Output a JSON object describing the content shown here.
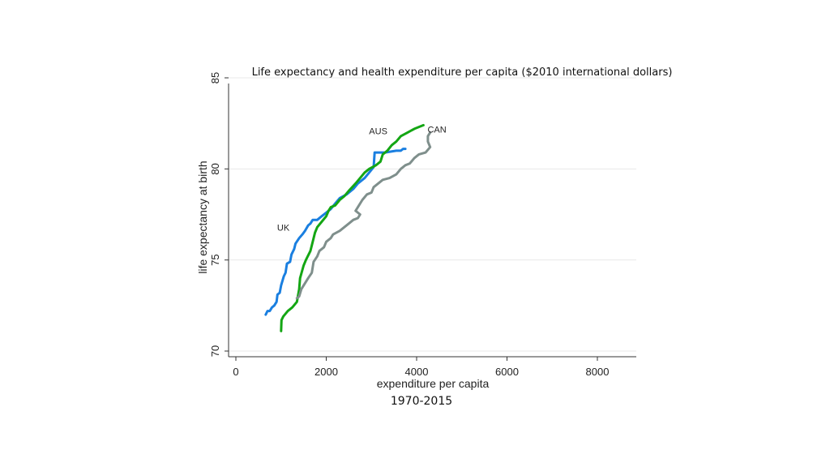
{
  "chart_data": {
    "type": "line",
    "title": "Life expectancy and health expenditure per capita ($2010 international dollars)",
    "xlabel": "expenditure per capita",
    "ylabel": "life expectancy at birth",
    "caption": "1970-2015",
    "xlim": [
      0,
      8900
    ],
    "ylim": [
      70,
      85
    ],
    "x_ticks": [
      0,
      2000,
      4000,
      6000,
      8000
    ],
    "y_ticks": [
      70,
      75,
      80,
      85
    ],
    "grid": true,
    "legend": "none",
    "series": [
      {
        "name": "UK",
        "color": "#1a7fe0",
        "points": [
          [
            660,
            72.0
          ],
          [
            700,
            72.2
          ],
          [
            750,
            72.2
          ],
          [
            800,
            72.4
          ],
          [
            850,
            72.5
          ],
          [
            900,
            72.7
          ],
          [
            920,
            73.1
          ],
          [
            970,
            73.2
          ],
          [
            1000,
            73.6
          ],
          [
            1060,
            74.1
          ],
          [
            1100,
            74.3
          ],
          [
            1130,
            74.8
          ],
          [
            1200,
            74.9
          ],
          [
            1230,
            75.3
          ],
          [
            1290,
            75.6
          ],
          [
            1320,
            75.9
          ],
          [
            1400,
            76.2
          ],
          [
            1470,
            76.4
          ],
          [
            1530,
            76.6
          ],
          [
            1600,
            76.9
          ],
          [
            1650,
            77.0
          ],
          [
            1700,
            77.2
          ],
          [
            1800,
            77.2
          ],
          [
            1900,
            77.4
          ],
          [
            2000,
            77.6
          ],
          [
            2100,
            77.8
          ],
          [
            2200,
            78.1
          ],
          [
            2300,
            78.4
          ],
          [
            2450,
            78.6
          ],
          [
            2600,
            78.9
          ],
          [
            2700,
            79.2
          ],
          [
            2850,
            79.5
          ],
          [
            2950,
            79.8
          ],
          [
            3050,
            80.1
          ],
          [
            3070,
            80.9
          ],
          [
            3300,
            80.9
          ],
          [
            3550,
            81.0
          ],
          [
            3650,
            81.0
          ],
          [
            3700,
            81.1
          ],
          [
            3750,
            81.1
          ]
        ]
      },
      {
        "name": "AUS",
        "color": "#14a614",
        "points": [
          [
            1000,
            71.1
          ],
          [
            1010,
            71.7
          ],
          [
            1050,
            71.9
          ],
          [
            1150,
            72.2
          ],
          [
            1250,
            72.4
          ],
          [
            1350,
            72.7
          ],
          [
            1400,
            73.4
          ],
          [
            1420,
            74.0
          ],
          [
            1500,
            74.7
          ],
          [
            1550,
            75.0
          ],
          [
            1650,
            75.5
          ],
          [
            1700,
            76.0
          ],
          [
            1750,
            76.5
          ],
          [
            1800,
            76.8
          ],
          [
            1900,
            77.1
          ],
          [
            2000,
            77.4
          ],
          [
            2050,
            77.7
          ],
          [
            2100,
            77.9
          ],
          [
            2200,
            78.0
          ],
          [
            2300,
            78.3
          ],
          [
            2400,
            78.5
          ],
          [
            2500,
            78.8
          ],
          [
            2650,
            79.2
          ],
          [
            2750,
            79.5
          ],
          [
            2850,
            79.8
          ],
          [
            2950,
            80.0
          ],
          [
            3100,
            80.2
          ],
          [
            3200,
            80.4
          ],
          [
            3250,
            80.8
          ],
          [
            3350,
            81.0
          ],
          [
            3450,
            81.3
          ],
          [
            3550,
            81.5
          ],
          [
            3650,
            81.8
          ],
          [
            3800,
            82.0
          ],
          [
            3950,
            82.2
          ],
          [
            4150,
            82.4
          ]
        ]
      },
      {
        "name": "CAN",
        "color": "#7f8f8c",
        "points": [
          [
            1350,
            72.9
          ],
          [
            1400,
            73.0
          ],
          [
            1450,
            73.4
          ],
          [
            1550,
            73.8
          ],
          [
            1600,
            74.0
          ],
          [
            1680,
            74.3
          ],
          [
            1720,
            74.9
          ],
          [
            1800,
            75.2
          ],
          [
            1850,
            75.5
          ],
          [
            1950,
            75.7
          ],
          [
            2000,
            76.0
          ],
          [
            2100,
            76.2
          ],
          [
            2150,
            76.4
          ],
          [
            2300,
            76.6
          ],
          [
            2400,
            76.8
          ],
          [
            2500,
            77.0
          ],
          [
            2600,
            77.2
          ],
          [
            2700,
            77.3
          ],
          [
            2750,
            77.5
          ],
          [
            2650,
            77.7
          ],
          [
            2700,
            77.9
          ],
          [
            2750,
            78.1
          ],
          [
            2800,
            78.3
          ],
          [
            2900,
            78.6
          ],
          [
            3000,
            78.7
          ],
          [
            3050,
            79.0
          ],
          [
            3150,
            79.2
          ],
          [
            3250,
            79.4
          ],
          [
            3400,
            79.5
          ],
          [
            3550,
            79.7
          ],
          [
            3650,
            80.0
          ],
          [
            3750,
            80.2
          ],
          [
            3850,
            80.3
          ],
          [
            3950,
            80.6
          ],
          [
            4050,
            80.8
          ],
          [
            4200,
            80.9
          ],
          [
            4300,
            81.2
          ],
          [
            4250,
            81.5
          ],
          [
            4250,
            81.8
          ],
          [
            4300,
            82.0
          ]
        ]
      }
    ],
    "series_labels": [
      {
        "name": "UK",
        "x": 1050,
        "y": 76.6
      },
      {
        "name": "AUS",
        "x": 3150,
        "y": 81.9
      },
      {
        "name": "CAN",
        "x": 4450,
        "y": 82.0
      }
    ]
  }
}
